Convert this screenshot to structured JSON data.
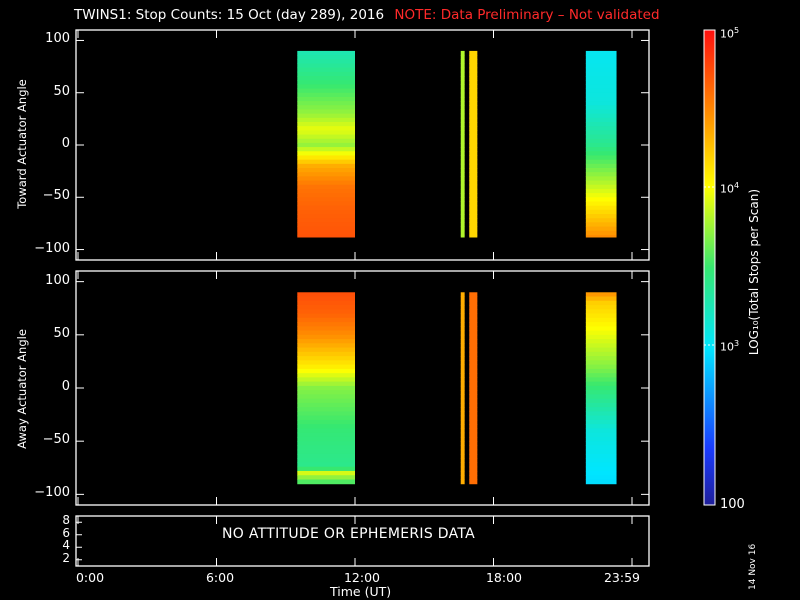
{
  "title": {
    "main": "TWINS1: Stop Counts: 15 Oct (day 289), 2016",
    "note": "NOTE: Data Preliminary – Not validated",
    "note_color": "#ff2a2a"
  },
  "no_data_text": "NO ATTITUDE OR EPHEMERIS DATA",
  "datestamp": "14 Nov 16",
  "colorbar": {
    "label": "LOG₁₀(Total Stops per Scan)",
    "ticks": [
      {
        "base": "10",
        "exp": "5",
        "value": 100000
      },
      {
        "base": "10",
        "exp": "4",
        "value": 10000
      },
      {
        "base": "10",
        "exp": "3",
        "value": 1000
      },
      {
        "base": "100",
        "exp": "",
        "value": 100
      }
    ],
    "range": [
      100,
      100000
    ],
    "scale": "log",
    "colormap": "rainbow (blue-cyan-green-yellow-orange-red)"
  },
  "chart_data": [
    {
      "type": "heatmap",
      "name": "toward",
      "ylabel": "Toward Actuator Angle",
      "ylim": [
        -110,
        110
      ],
      "yticks": [
        "100",
        "50",
        "0",
        "−50",
        "−100"
      ],
      "ytick_values": [
        100,
        50,
        0,
        -50,
        -100
      ],
      "xlim_hours": [
        0,
        24
      ],
      "angle_range": [
        -88,
        90
      ],
      "blocks": [
        {
          "start": "9:30",
          "end": "12:00",
          "t0": 9.5,
          "t1": 12.0,
          "profile": [
            [
              90,
              1800
            ],
            [
              60,
              3000
            ],
            [
              30,
              5500
            ],
            [
              15,
              9000
            ],
            [
              0,
              5500
            ],
            [
              -20,
              22000
            ],
            [
              -40,
              38000
            ],
            [
              -60,
              45000
            ],
            [
              -88,
              52000
            ]
          ]
        },
        {
          "start": "16:35",
          "end": "16:45",
          "t0": 16.58,
          "t1": 16.75,
          "profile": [
            [
              90,
              6500
            ],
            [
              -88,
              6500
            ]
          ]
        },
        {
          "start": "16:55",
          "end": "17:20",
          "t0": 16.95,
          "t1": 17.3,
          "profile": [
            [
              90,
              15000
            ],
            [
              -88,
              15000
            ]
          ]
        },
        {
          "start": "22:00",
          "end": "23:20",
          "t0": 22.0,
          "t1": 23.33,
          "profile": [
            [
              90,
              1100
            ],
            [
              40,
              1300
            ],
            [
              0,
              2500
            ],
            [
              -30,
              5500
            ],
            [
              -60,
              13000
            ],
            [
              -88,
              30000
            ]
          ]
        }
      ]
    },
    {
      "type": "heatmap",
      "name": "away",
      "ylabel": "Away Actuator Angle",
      "ylim": [
        -110,
        110
      ],
      "yticks": [
        "100",
        "50",
        "0",
        "−50",
        "−100"
      ],
      "ytick_values": [
        100,
        50,
        0,
        -50,
        -100
      ],
      "xlim_hours": [
        0,
        24
      ],
      "angle_range": [
        -90,
        90
      ],
      "blocks": [
        {
          "start": "9:30",
          "end": "12:00",
          "t0": 9.5,
          "t1": 12.0,
          "profile": [
            [
              90,
              55000
            ],
            [
              70,
              45000
            ],
            [
              50,
              30000
            ],
            [
              20,
              12000
            ],
            [
              0,
              5000
            ],
            [
              -40,
              3000
            ],
            [
              -75,
              2500
            ],
            [
              -80,
              8000
            ],
            [
              -90,
              3000
            ]
          ]
        },
        {
          "start": "16:35",
          "end": "16:45",
          "t0": 16.58,
          "t1": 16.75,
          "profile": [
            [
              90,
              22000
            ],
            [
              -90,
              22000
            ]
          ]
        },
        {
          "start": "16:55",
          "end": "17:20",
          "t0": 16.95,
          "t1": 17.3,
          "profile": [
            [
              90,
              40000
            ],
            [
              -90,
              40000
            ]
          ]
        },
        {
          "start": "22:00",
          "end": "23:20",
          "t0": 22.0,
          "t1": 23.33,
          "profile": [
            [
              90,
              30000
            ],
            [
              80,
              16000
            ],
            [
              60,
              11000
            ],
            [
              20,
              5000
            ],
            [
              0,
              3000
            ],
            [
              -40,
              1300
            ],
            [
              -90,
              900
            ]
          ]
        }
      ]
    },
    {
      "type": "line",
      "name": "ephemeris",
      "yticks": [
        "8",
        "6",
        "4",
        "2"
      ],
      "ytick_values": [
        8,
        6,
        4,
        2
      ],
      "ylim": [
        1,
        9
      ],
      "series": []
    }
  ],
  "xaxis": {
    "label": "Time (UT)",
    "ticks": [
      "0:00",
      "6:00",
      "12:00",
      "18:00",
      "23:59"
    ],
    "tick_hours": [
      0,
      6,
      12,
      18,
      24
    ]
  }
}
